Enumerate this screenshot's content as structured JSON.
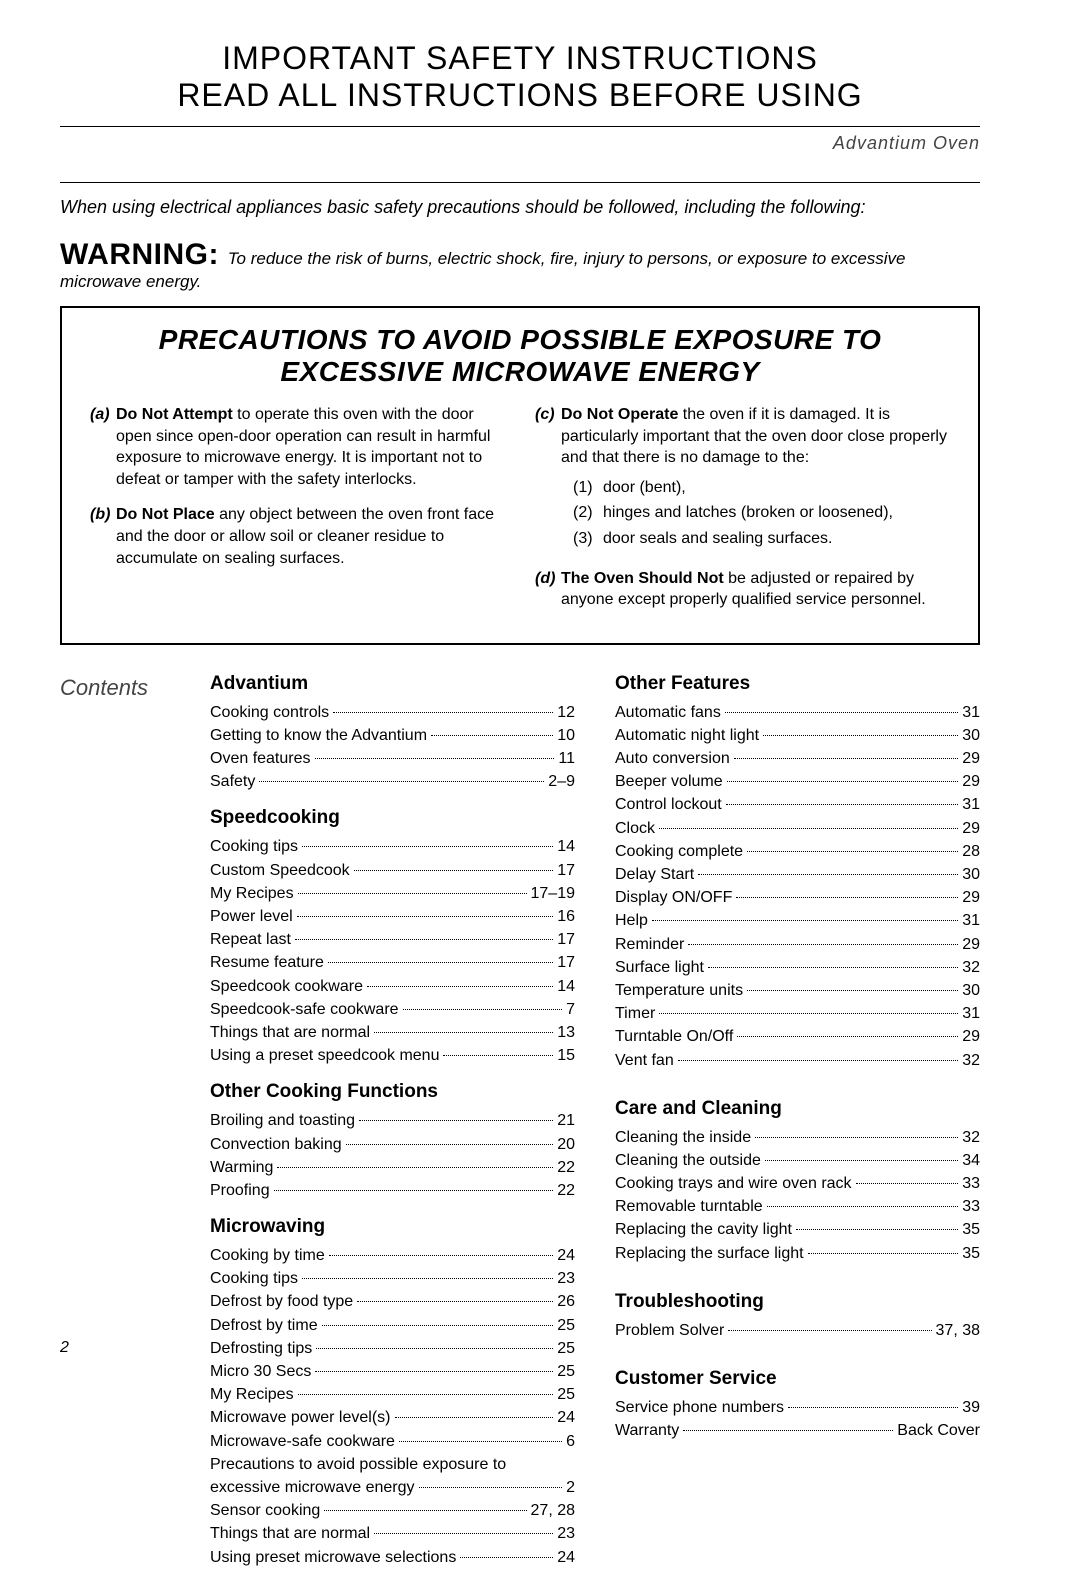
{
  "header": {
    "line1": "IMPORTANT SAFETY INSTRUCTIONS",
    "line2": "READ ALL INSTRUCTIONS BEFORE USING",
    "product": "Advantium Oven"
  },
  "intro": "When using electrical appliances basic safety precautions should be followed, including the following:",
  "warning": {
    "label": "WARNING:",
    "text": "To reduce the risk of burns, electric shock, fire, injury to persons, or exposure to excessive microwave energy."
  },
  "precautions": {
    "title1": "PRECAUTIONS TO AVOID POSSIBLE EXPOSURE TO",
    "title2": "EXCESSIVE MICROWAVE ENERGY",
    "a": {
      "letter": "(a)",
      "lead": "Do Not Attempt",
      "body": " to operate this oven with the door open since open-door operation can result in harmful exposure to microwave energy. It is important not to defeat or tamper with the safety interlocks."
    },
    "b": {
      "letter": "(b)",
      "lead": "Do Not Place",
      "body": " any object between the oven front face and the door or allow soil or cleaner residue to accumulate on sealing surfaces."
    },
    "c": {
      "letter": "(c)",
      "lead": "Do Not Operate",
      "body": " the oven if it is damaged. It is particularly important that the oven door close properly and that there is no damage to the:",
      "sub": [
        {
          "n": "(1)",
          "t": "door (bent),"
        },
        {
          "n": "(2)",
          "t": "hinges and latches (broken or loosened),"
        },
        {
          "n": "(3)",
          "t": "door seals and sealing surfaces."
        }
      ]
    },
    "d": {
      "letter": "(d)",
      "lead": "The Oven Should Not",
      "body": " be adjusted or repaired by anyone except properly qualified service personnel."
    }
  },
  "contents": {
    "label": "Contents",
    "left": [
      {
        "h": "Advantium"
      },
      {
        "t": "Cooking controls",
        "p": "12"
      },
      {
        "t": "Getting to know the Advantium",
        "p": "10"
      },
      {
        "t": "Oven features",
        "p": "11"
      },
      {
        "t": "Safety",
        "p": "2–9"
      },
      {
        "h": "Speedcooking"
      },
      {
        "t": "Cooking tips",
        "p": "14"
      },
      {
        "t": "Custom Speedcook",
        "p": "17"
      },
      {
        "t": "My Recipes",
        "p": "17–19"
      },
      {
        "t": "Power level",
        "p": "16"
      },
      {
        "t": "Repeat last",
        "p": "17"
      },
      {
        "t": "Resume feature",
        "p": "17"
      },
      {
        "t": "Speedcook cookware",
        "p": "14"
      },
      {
        "t": "Speedcook-safe cookware",
        "p": "7"
      },
      {
        "t": "Things that are normal",
        "p": "13"
      },
      {
        "t": "Using a preset speedcook menu",
        "p": "15"
      },
      {
        "h": "Other Cooking Functions"
      },
      {
        "t": "Broiling and toasting",
        "p": "21"
      },
      {
        "t": "Convection baking",
        "p": "20"
      },
      {
        "t": "Warming",
        "p": "22"
      },
      {
        "t": "Proofing",
        "p": "22"
      },
      {
        "h": "Microwaving"
      },
      {
        "t": "Cooking by time",
        "p": "24"
      },
      {
        "t": "Cooking tips",
        "p": "23"
      },
      {
        "t": "Defrost by food type",
        "p": "26"
      },
      {
        "t": "Defrost by time",
        "p": "25"
      },
      {
        "t": "Defrosting tips",
        "p": "25"
      },
      {
        "t": "Micro 30 Secs",
        "p": "25"
      },
      {
        "t": "My Recipes",
        "p": "25"
      },
      {
        "t": "Microwave power level(s)",
        "p": "24"
      },
      {
        "t": "Microwave-safe cookware",
        "p": "6"
      },
      {
        "t": "Precautions to avoid possible exposure to excessive microwave energy",
        "p": "2",
        "long": true
      },
      {
        "t": "Sensor cooking",
        "p": "27, 28"
      },
      {
        "t": "Things that are normal",
        "p": "23"
      },
      {
        "t": "Using preset microwave selections",
        "p": "24"
      }
    ],
    "right": [
      {
        "h": "Other Features"
      },
      {
        "t": "Automatic fans",
        "p": "31"
      },
      {
        "t": "Automatic night light",
        "p": "30"
      },
      {
        "t": "Auto conversion",
        "p": "29"
      },
      {
        "t": "Beeper volume",
        "p": "29"
      },
      {
        "t": "Control lockout",
        "p": "31"
      },
      {
        "t": "Clock",
        "p": "29"
      },
      {
        "t": "Cooking complete",
        "p": "28"
      },
      {
        "t": "Delay Start",
        "p": "30"
      },
      {
        "t": "Display ON/OFF",
        "p": "29"
      },
      {
        "t": "Help",
        "p": "31"
      },
      {
        "t": "Reminder",
        "p": "29"
      },
      {
        "t": "Surface light",
        "p": "32"
      },
      {
        "t": "Temperature units",
        "p": "30"
      },
      {
        "t": "Timer",
        "p": "31"
      },
      {
        "t": "Turntable On/Off",
        "p": "29"
      },
      {
        "t": "Vent fan",
        "p": "32"
      },
      {
        "h": "Care and Cleaning",
        "gap": true
      },
      {
        "t": "Cleaning the inside",
        "p": "32"
      },
      {
        "t": "Cleaning the outside",
        "p": "34"
      },
      {
        "t": "Cooking trays and wire oven rack",
        "p": "33"
      },
      {
        "t": "Removable turntable",
        "p": "33"
      },
      {
        "t": "Replacing the cavity light",
        "p": "35"
      },
      {
        "t": "Replacing the surface light",
        "p": "35"
      },
      {
        "h": "Troubleshooting",
        "gap": true
      },
      {
        "t": "Problem Solver",
        "p": "37, 38"
      },
      {
        "h": "Customer Service",
        "gap": true
      },
      {
        "t": "Service phone numbers",
        "p": "39"
      },
      {
        "t": "Warranty",
        "p": "Back Cover"
      }
    ]
  },
  "page_number": "2"
}
